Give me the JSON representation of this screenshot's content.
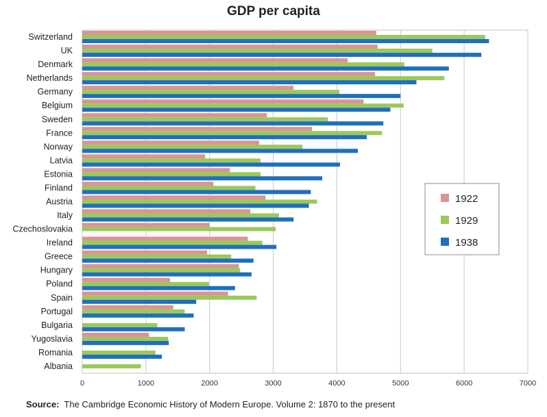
{
  "chart_data": {
    "type": "bar",
    "orientation": "horizontal",
    "title": "GDP per capita",
    "xlabel": "",
    "ylabel": "",
    "xlim": [
      0,
      7000
    ],
    "x_ticks": [
      "0",
      "1000",
      "2000",
      "3000",
      "4000",
      "5000",
      "6000",
      "7000"
    ],
    "grid": true,
    "legend_position": "right",
    "categories": [
      "Switzerland",
      "UK",
      "Denmark",
      "Netherlands",
      "Germany",
      "Belgium",
      "Sweden",
      "France",
      "Norway",
      "Latvia",
      "Estonia",
      "Finland",
      "Austria",
      "Italy",
      "Czechoslovakia",
      "Ireland",
      "Greece",
      "Hungary",
      "Poland",
      "Spain",
      "Portugal",
      "Bulgaria",
      "Yugoslavia",
      "Romania",
      "Albania"
    ],
    "series": [
      {
        "name": "1922",
        "color": "#d99594",
        "values": [
          4620,
          4640,
          4170,
          4600,
          3320,
          4420,
          2900,
          3610,
          2780,
          1930,
          2320,
          2060,
          2880,
          2640,
          2000,
          2600,
          1960,
          2460,
          1380,
          2290,
          1430,
          null,
          1050,
          null,
          null
        ]
      },
      {
        "name": "1929",
        "color": "#9bc95a",
        "values": [
          6330,
          5500,
          5060,
          5690,
          4040,
          5050,
          3860,
          4710,
          3460,
          2800,
          2800,
          2720,
          3690,
          3090,
          3040,
          2830,
          2340,
          2480,
          1990,
          2740,
          1610,
          1180,
          1350,
          1150,
          920
        ]
      },
      {
        "name": "1938",
        "color": "#1f6fbd",
        "values": [
          6390,
          6270,
          5760,
          5250,
          5000,
          4840,
          4730,
          4470,
          4330,
          4050,
          3770,
          3590,
          3560,
          3320,
          null,
          3050,
          2690,
          2660,
          2400,
          1790,
          1750,
          1610,
          1360,
          1250,
          null
        ]
      }
    ]
  },
  "source": {
    "label": "Source:",
    "text": "The Cambridge Economic History  of Modern Europe. Volume 2: 1870 to the present"
  }
}
